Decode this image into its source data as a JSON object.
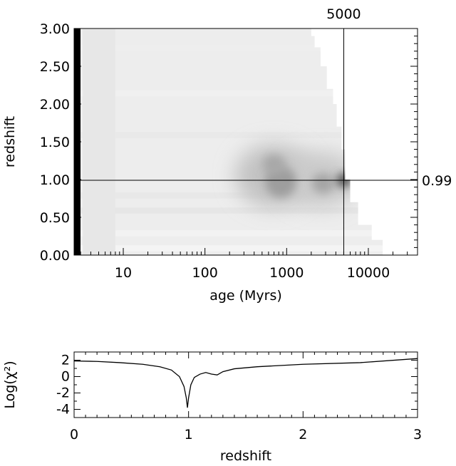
{
  "chart_data": [
    {
      "type": "heatmap",
      "title": "",
      "xlabel": "age (Myrs)",
      "ylabel": "redshift",
      "x_scale": "log",
      "xlim": [
        2.5,
        40000
      ],
      "ylim": [
        0.0,
        3.0
      ],
      "x_tick_values": [
        10,
        100,
        1000,
        10000
      ],
      "x_tick_labels": [
        "10",
        "100",
        "1000",
        "10000"
      ],
      "y_tick_values": [
        0.0,
        0.5,
        1.0,
        1.5,
        2.0,
        2.5,
        3.0
      ],
      "y_tick_labels": [
        "0.00",
        "0.50",
        "1.00",
        "1.50",
        "2.00",
        "2.50",
        "3.00"
      ],
      "markers": {
        "age": 5000,
        "age_label": "5000",
        "redshift": 0.99,
        "redshift_label": "0.99"
      },
      "colormap": "grayscale, darker = lower chi-squared",
      "minima_regions": [
        {
          "age": 5000,
          "redshift": 0.99
        },
        {
          "age": 850,
          "redshift": 1.0
        },
        {
          "age": 2800,
          "redshift": 0.95
        },
        {
          "age": 700,
          "redshift": 1.2
        }
      ],
      "excluded_region": "white region at ages older than the universe at each redshift"
    },
    {
      "type": "line",
      "title": "",
      "xlabel": "redshift",
      "ylabel": "Log(χ²)",
      "xlim": [
        0,
        3
      ],
      "ylim": [
        -5,
        3
      ],
      "x_tick_labels": [
        "0",
        "1",
        "2",
        "3"
      ],
      "y_tick_labels": [
        "2",
        "0",
        "-2",
        "-4"
      ],
      "series": [
        {
          "x": [
            0.0,
            0.2,
            0.4,
            0.6,
            0.75,
            0.85,
            0.92,
            0.96,
            0.98,
            0.99,
            1.0,
            1.02,
            1.05,
            1.1,
            1.15,
            1.2,
            1.25,
            1.3,
            1.4,
            1.6,
            2.0,
            2.5,
            3.0
          ],
          "y": [
            1.9,
            1.85,
            1.7,
            1.5,
            1.2,
            0.8,
            0.0,
            -1.2,
            -2.6,
            -3.8,
            -2.6,
            -1.0,
            -0.1,
            0.3,
            0.5,
            0.3,
            0.2,
            0.6,
            0.95,
            1.2,
            1.5,
            1.7,
            2.2
          ]
        }
      ]
    }
  ]
}
